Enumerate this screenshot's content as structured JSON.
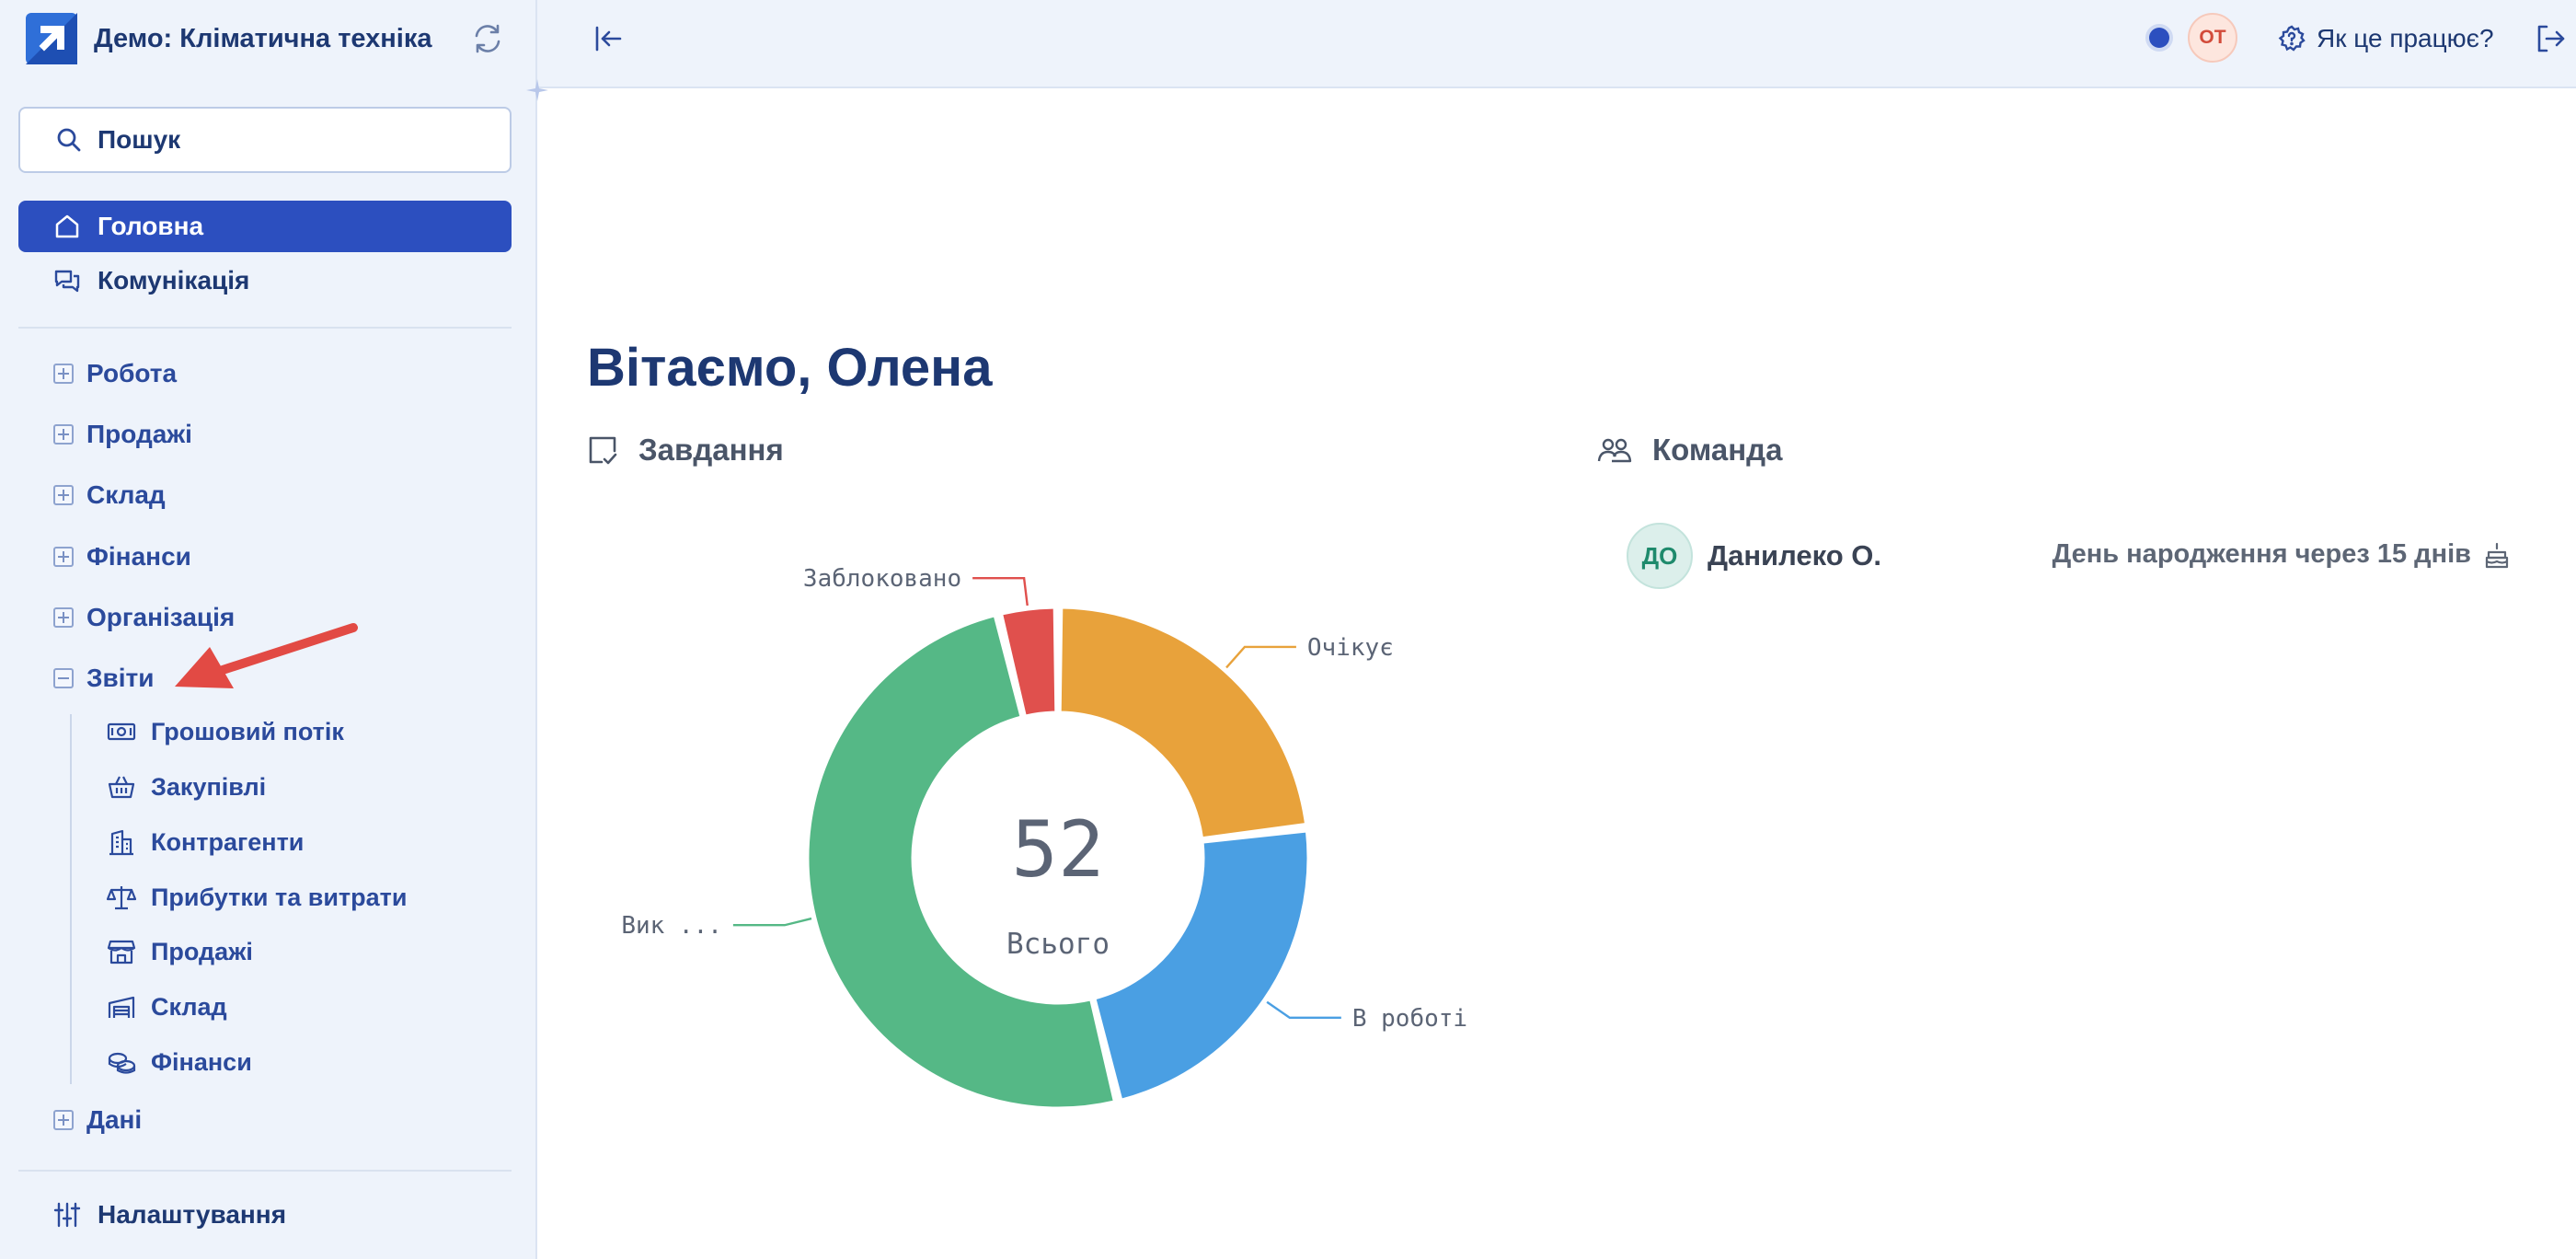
{
  "app": {
    "title": "Демо: Кліматична техніка"
  },
  "sidebar": {
    "search_label": "Пошук",
    "top_items": [
      {
        "label": "Головна",
        "icon": "home-icon",
        "active": true
      },
      {
        "label": "Комунікація",
        "icon": "chat-icon",
        "active": false
      }
    ],
    "groups": [
      {
        "label": "Робота",
        "expanded": false
      },
      {
        "label": "Продажі",
        "expanded": false
      },
      {
        "label": "Склад",
        "expanded": false
      },
      {
        "label": "Фінанси",
        "expanded": false
      },
      {
        "label": "Організація",
        "expanded": false
      },
      {
        "label": "Звіти",
        "expanded": true
      },
      {
        "label": "Дані",
        "expanded": false
      }
    ],
    "reports": [
      {
        "label": "Грошовий потік",
        "icon": "banknote-icon"
      },
      {
        "label": "Закупівлі",
        "icon": "basket-icon"
      },
      {
        "label": "Контрагенти",
        "icon": "building-icon"
      },
      {
        "label": "Прибутки та витрати",
        "icon": "scale-icon"
      },
      {
        "label": "Продажі",
        "icon": "store-icon"
      },
      {
        "label": "Склад",
        "icon": "warehouse-icon"
      },
      {
        "label": "Фінанси",
        "icon": "coins-icon"
      }
    ],
    "settings_label": "Налаштування"
  },
  "topbar": {
    "user_initials": "ОТ",
    "help_label": "Як це працює?"
  },
  "main": {
    "greeting": "Вітаємо, Олена",
    "tasks_title": "Завдання",
    "team_title": "Команда",
    "team": [
      {
        "initials": "ДО",
        "name": "Данилеко О.",
        "birthday_note": "День народження через 15 днів"
      }
    ]
  },
  "chart_data": {
    "type": "pie",
    "donut": true,
    "center_value": "52",
    "center_label": "Всього",
    "slices": [
      {
        "name": "Очікує",
        "value": 12,
        "color": "#e8a23b"
      },
      {
        "name": "В роботі",
        "value": 12,
        "color": "#4a9fe3"
      },
      {
        "name": "Вик ...",
        "value": 26,
        "color": "#55b886"
      },
      {
        "name": "Заблоковано",
        "value": 2,
        "color": "#e0504d"
      }
    ]
  },
  "colors": {
    "accent": "#2c4fbf",
    "sidebar_bg": "#eef3fb",
    "annotation_arrow": "#e24a44"
  }
}
